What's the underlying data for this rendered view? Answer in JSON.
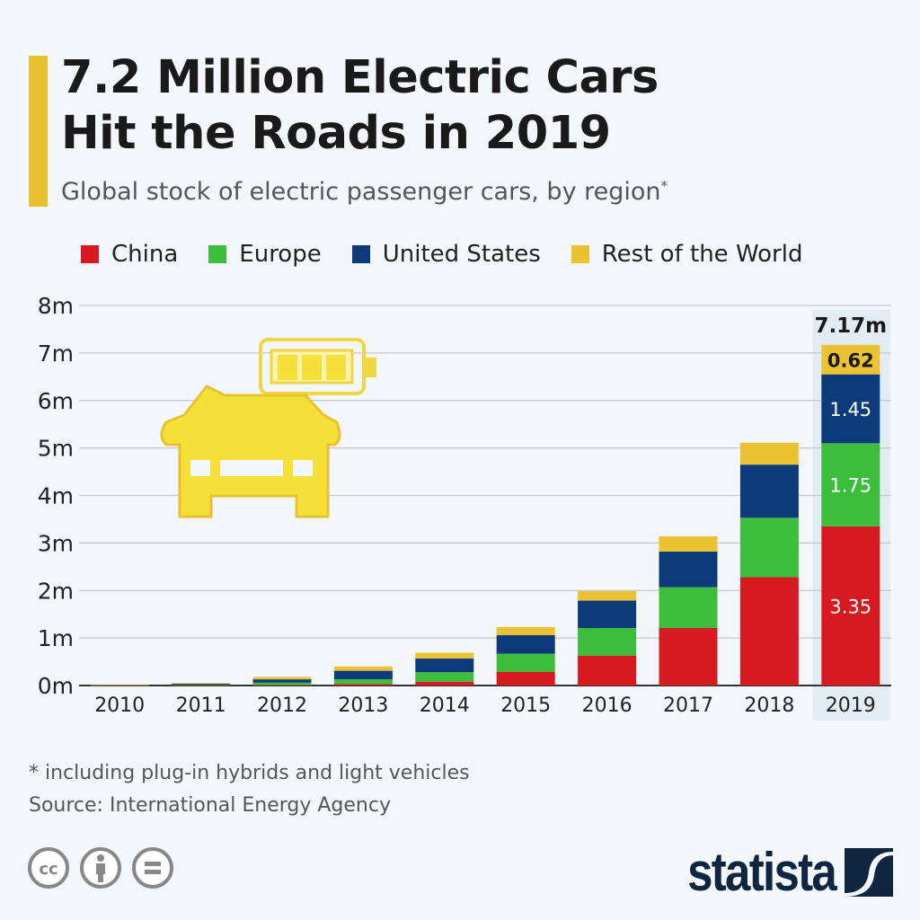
{
  "header": {
    "title_line1": "7.2 Million Electric Cars",
    "title_line2": "Hit the Roads in 2019",
    "subtitle": "Global stock of electric passenger cars, by region",
    "subtitle_mark": "*"
  },
  "colors": {
    "accent": "#e8c22e",
    "China": "#d71920",
    "Europe": "#3cbd3c",
    "United States": "#0d3a7a",
    "Rest of the World": "#ebc231",
    "highlight": "#e3ebf3"
  },
  "icons": [
    "electric-car-battery-icon",
    "cc-icon",
    "attribution-icon",
    "no-derivatives-icon",
    "statista-logo"
  ],
  "chart_data": {
    "type": "bar",
    "stacked": true,
    "categories": [
      "2010",
      "2011",
      "2012",
      "2013",
      "2014",
      "2015",
      "2016",
      "2017",
      "2018",
      "2019"
    ],
    "series": [
      {
        "name": "China",
        "values": [
          0.002,
          0.01,
          0.01,
          0.03,
          0.08,
          0.29,
          0.63,
          1.21,
          2.28,
          3.35
        ]
      },
      {
        "name": "Europe",
        "values": [
          0.003,
          0.01,
          0.05,
          0.1,
          0.2,
          0.38,
          0.58,
          0.86,
          1.25,
          1.75
        ]
      },
      {
        "name": "United States",
        "values": [
          0.004,
          0.02,
          0.07,
          0.18,
          0.29,
          0.39,
          0.58,
          0.75,
          1.12,
          1.45
        ]
      },
      {
        "name": "Rest of the World",
        "values": [
          0.008,
          0.01,
          0.05,
          0.09,
          0.12,
          0.17,
          0.2,
          0.32,
          0.46,
          0.62
        ]
      }
    ],
    "ylim": [
      0,
      8
    ],
    "yticks": [
      "0m",
      "1m",
      "2m",
      "3m",
      "4m",
      "5m",
      "6m",
      "7m",
      "8m"
    ],
    "grid": true,
    "legend": "top",
    "highlight_category": "2019",
    "data_labels": {
      "2019": [
        "3.35",
        "1.75",
        "1.45",
        "0.62"
      ]
    },
    "total_label": "7.17m"
  },
  "footer": {
    "note": "* including plug-in hybrids and light vehicles",
    "source": "Source: International Energy Agency",
    "brand": "statista"
  }
}
